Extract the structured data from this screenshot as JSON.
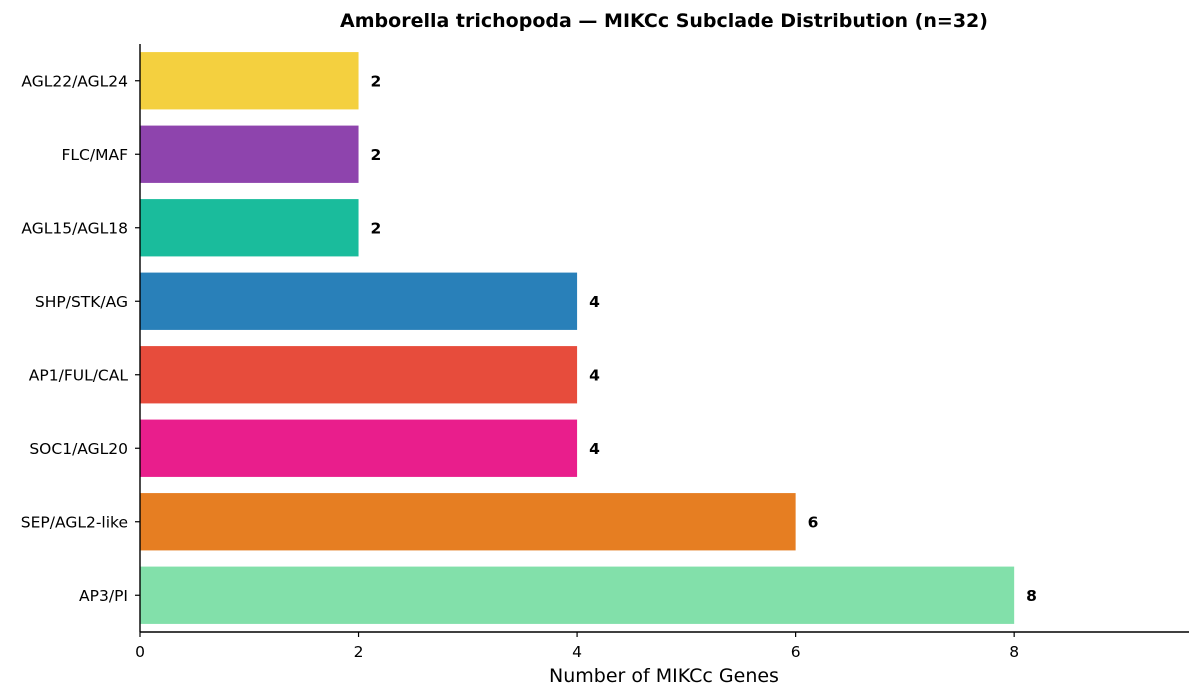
{
  "chart_data": {
    "type": "bar",
    "orientation": "horizontal",
    "title": "Amborella trichopoda  —  MIKCc Subclade Distribution  (n=32)",
    "xlabel": "Number of MIKCc Genes",
    "ylabel": "",
    "categories": [
      "AP3/PI",
      "SEP/AGL2-like",
      "SOC1/AGL20",
      "AP1/FUL/CAL",
      "SHP/STK/AG",
      "AGL15/AGL18",
      "FLC/MAF",
      "AGL22/AGL24"
    ],
    "values": [
      8,
      6,
      4,
      4,
      4,
      2,
      2,
      2
    ],
    "data_labels": [
      "8",
      "6",
      "4",
      "4",
      "4",
      "2",
      "2",
      "2"
    ],
    "colors": [
      "#82e0aa",
      "#e67e22",
      "#e91e8c",
      "#e74c3c",
      "#2980b9",
      "#1abc9c",
      "#8e44ad",
      "#f4d03f"
    ],
    "xlim": [
      0,
      9.6
    ],
    "xticks": [
      0,
      2,
      4,
      6,
      8
    ],
    "xtick_labels": [
      "0",
      "2",
      "4",
      "6",
      "8"
    ],
    "grid": false,
    "legend": "none"
  }
}
